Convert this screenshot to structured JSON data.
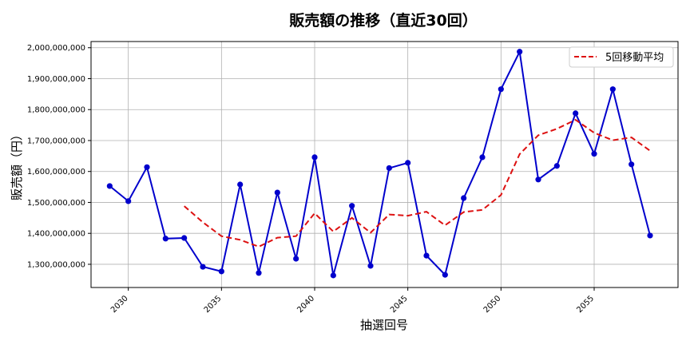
{
  "chart_data": {
    "type": "line",
    "title": "販売額の推移（直近30回）",
    "xlabel": "抽選回号",
    "ylabel": "販売額（円）",
    "x": [
      2029,
      2030,
      2031,
      2032,
      2033,
      2034,
      2035,
      2036,
      2037,
      2038,
      2039,
      2040,
      2041,
      2042,
      2043,
      2044,
      2045,
      2046,
      2047,
      2048,
      2049,
      2050,
      2051,
      2052,
      2053,
      2054,
      2055,
      2056,
      2057,
      2058
    ],
    "x_ticks": [
      2030,
      2035,
      2040,
      2045,
      2050,
      2055
    ],
    "y_ticks": [
      1300000000,
      1400000000,
      1500000000,
      1600000000,
      1700000000,
      1800000000,
      1900000000,
      2000000000
    ],
    "y_tick_labels": [
      "1,300,000,000",
      "1,400,000,000",
      "1,500,000,000",
      "1,600,000,000",
      "1,700,000,000",
      "1,800,000,000",
      "1,900,000,000",
      "2,000,000,000"
    ],
    "xlim": [
      2028.0,
      2059.5
    ],
    "ylim": [
      1225000000,
      2020000000
    ],
    "grid": true,
    "legend_position": "upper right",
    "series": [
      {
        "name": "販売額",
        "color": "#0000cc",
        "style": "solid-with-markers",
        "in_legend": false,
        "values": [
          1553000000,
          1504000000,
          1614000000,
          1383000000,
          1385000000,
          1292000000,
          1277000000,
          1558000000,
          1272000000,
          1532000000,
          1318000000,
          1646000000,
          1264000000,
          1489000000,
          1295000000,
          1611000000,
          1628000000,
          1328000000,
          1266000000,
          1514000000,
          1646000000,
          1866000000,
          1987000000,
          1574000000,
          1618000000,
          1788000000,
          1657000000,
          1866000000,
          1623000000,
          1393000000
        ]
      },
      {
        "name": "5回移動平均",
        "color": "#dd1111",
        "style": "dashed",
        "in_legend": true,
        "values": [
          null,
          null,
          null,
          null,
          1488000000,
          1436000000,
          1391000000,
          1379000000,
          1357000000,
          1386000000,
          1391000000,
          1465000000,
          1406000000,
          1450000000,
          1402000000,
          1461000000,
          1457000000,
          1470000000,
          1426000000,
          1469000000,
          1476000000,
          1524000000,
          1656000000,
          1717000000,
          1738000000,
          1767000000,
          1725000000,
          1701000000,
          1710000000,
          1667000000
        ]
      }
    ]
  }
}
